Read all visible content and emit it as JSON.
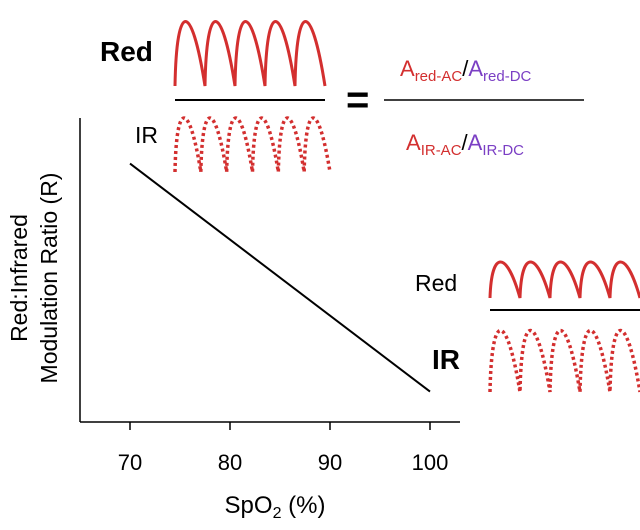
{
  "labels": {
    "red_top": "Red",
    "ir_top": "IR",
    "red_right": "Red",
    "ir_right": "IR",
    "equals": "="
  },
  "formula": {
    "num_red_ac_base": "A",
    "num_red_ac_sub": "red-AC",
    "slash": "/",
    "num_red_dc_base": "A",
    "num_red_dc_sub": "red-DC",
    "den_ir_ac_base": "A",
    "den_ir_ac_sub": "IR-AC",
    "den_ir_dc_base": "A",
    "den_ir_dc_sub": "IR-DC"
  },
  "axes": {
    "ylabel_line1": "Red:Infrared",
    "ylabel_line2": "Modulation Ratio (R)",
    "xlabel_base": "SpO",
    "xlabel_sub": "2",
    "xlabel_tail": " (%)"
  },
  "colors": {
    "waveform": "#d32f2f",
    "ac_text": "#d32f2f",
    "dc_text": "#7b3fc4"
  },
  "chart_data": {
    "type": "line",
    "x_ticks": [
      "70",
      "80",
      "90",
      "100"
    ],
    "xlim": [
      65,
      103
    ],
    "series": [
      {
        "x": [
          70,
          100
        ],
        "y": [
          0.85,
          0.1
        ]
      }
    ],
    "ylim": [
      0,
      1
    ],
    "grid": false
  }
}
